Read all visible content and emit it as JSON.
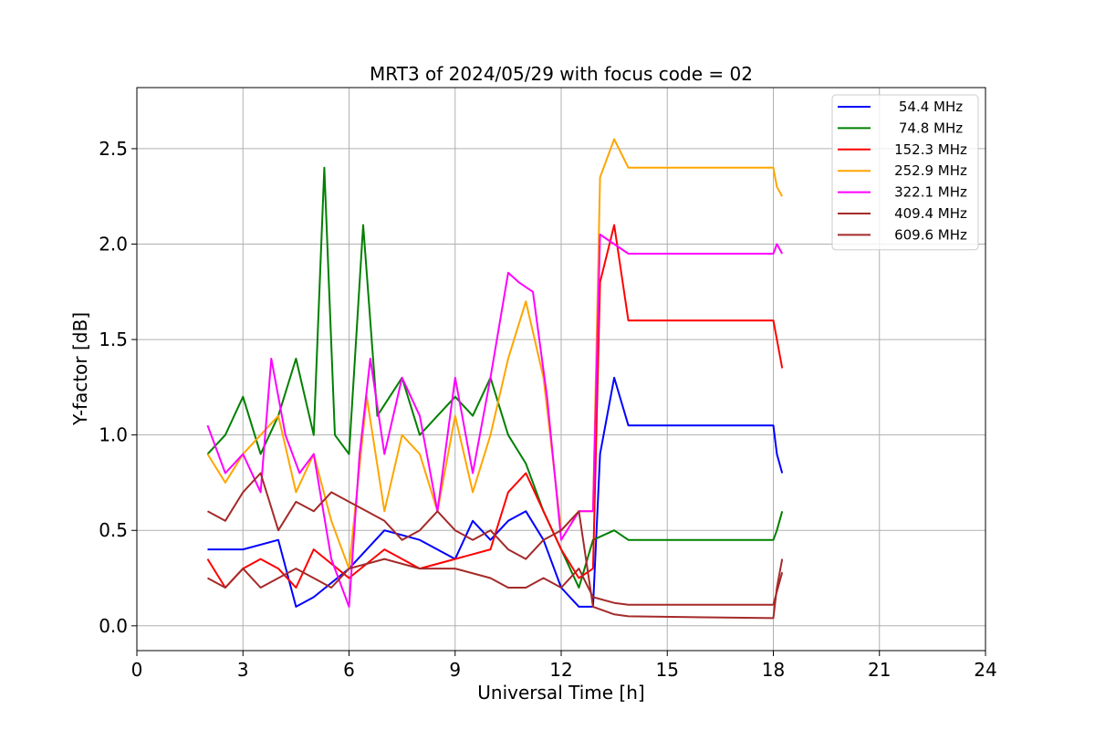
{
  "chart_data": {
    "type": "line",
    "title": "MRT3 of 2024/05/29 with focus code = 02",
    "xlabel": "Universal Time [h]",
    "ylabel": "Y-factor [dB]",
    "xlim": [
      0,
      24
    ],
    "ylim": [
      -0.13,
      2.82
    ],
    "xticks": [
      0,
      3,
      6,
      9,
      12,
      15,
      18,
      21,
      24
    ],
    "xtick_labels": [
      "0",
      "3",
      "6",
      "9",
      "12",
      "15",
      "18",
      "21",
      "24"
    ],
    "yticks": [
      0.0,
      0.5,
      1.0,
      1.5,
      2.0,
      2.5
    ],
    "ytick_labels": [
      "0.0",
      "0.5",
      "1.0",
      "1.5",
      "2.0",
      "2.5"
    ],
    "grid": true,
    "legend_position": "top-right",
    "series": [
      {
        "name": "54.4 MHz",
        "color": "#0000ff",
        "x": [
          2.0,
          3.0,
          4.0,
          4.5,
          5.0,
          6.0,
          7.0,
          8.0,
          9.0,
          9.5,
          10.0,
          10.5,
          11.0,
          11.5,
          12.0,
          12.5,
          12.9,
          13.1,
          13.5,
          13.9,
          18.0,
          18.1,
          18.25
        ],
        "y": [
          0.4,
          0.4,
          0.45,
          0.1,
          0.15,
          0.3,
          0.5,
          0.45,
          0.35,
          0.55,
          0.45,
          0.55,
          0.6,
          0.45,
          0.2,
          0.1,
          0.1,
          0.9,
          1.3,
          1.05,
          1.05,
          0.9,
          0.8
        ]
      },
      {
        "name": "74.8 MHz",
        "color": "#008000",
        "x": [
          2.0,
          2.5,
          3.0,
          3.5,
          4.0,
          4.5,
          5.0,
          5.3,
          5.6,
          6.0,
          6.4,
          6.8,
          7.5,
          8.0,
          8.5,
          9.0,
          9.5,
          10.0,
          10.5,
          11.0,
          11.5,
          12.0,
          12.5,
          12.9,
          13.5,
          13.9,
          18.0,
          18.1,
          18.25
        ],
        "y": [
          0.9,
          1.0,
          1.2,
          0.9,
          1.1,
          1.4,
          1.0,
          2.4,
          1.0,
          0.9,
          2.1,
          1.1,
          1.3,
          1.0,
          1.1,
          1.2,
          1.1,
          1.3,
          1.0,
          0.85,
          0.6,
          0.4,
          0.2,
          0.45,
          0.5,
          0.45,
          0.45,
          0.5,
          0.6
        ]
      },
      {
        "name": "152.3 MHz",
        "color": "#ff0000",
        "x": [
          2.0,
          2.5,
          3.0,
          3.5,
          4.0,
          4.5,
          5.0,
          6.0,
          7.0,
          8.0,
          9.0,
          10.0,
          10.5,
          11.0,
          11.5,
          12.0,
          12.5,
          12.9,
          13.1,
          13.5,
          13.9,
          18.0,
          18.1,
          18.25
        ],
        "y": [
          0.35,
          0.2,
          0.3,
          0.35,
          0.3,
          0.2,
          0.4,
          0.25,
          0.4,
          0.3,
          0.35,
          0.4,
          0.7,
          0.8,
          0.6,
          0.4,
          0.25,
          0.3,
          1.8,
          2.1,
          1.6,
          1.6,
          1.5,
          1.35
        ]
      },
      {
        "name": "252.9 MHz",
        "color": "#ffa500",
        "x": [
          2.0,
          2.5,
          3.0,
          3.5,
          4.0,
          4.5,
          5.0,
          5.5,
          6.0,
          6.5,
          7.0,
          7.5,
          8.0,
          8.5,
          9.0,
          9.5,
          10.0,
          10.5,
          11.0,
          11.5,
          12.0,
          12.5,
          12.9,
          13.1,
          13.5,
          13.9,
          18.0,
          18.1,
          18.25
        ],
        "y": [
          0.9,
          0.75,
          0.9,
          1.0,
          1.1,
          0.7,
          0.9,
          0.55,
          0.3,
          1.2,
          0.6,
          1.0,
          0.9,
          0.6,
          1.1,
          0.7,
          1.0,
          1.4,
          1.7,
          1.3,
          0.5,
          0.6,
          0.6,
          2.35,
          2.55,
          2.4,
          2.4,
          2.3,
          2.25
        ]
      },
      {
        "name": "322.1 MHz",
        "color": "#ff00ff",
        "x": [
          2.0,
          2.5,
          3.0,
          3.5,
          3.8,
          4.2,
          4.6,
          5.0,
          5.5,
          6.0,
          6.3,
          6.6,
          7.0,
          7.5,
          8.0,
          8.5,
          9.0,
          9.5,
          10.0,
          10.5,
          10.8,
          11.2,
          11.6,
          12.0,
          12.5,
          12.9,
          13.1,
          13.5,
          13.9,
          18.0,
          18.1,
          18.25
        ],
        "y": [
          1.05,
          0.8,
          0.9,
          0.7,
          1.4,
          1.0,
          0.8,
          0.9,
          0.35,
          0.1,
          0.9,
          1.4,
          0.9,
          1.3,
          1.1,
          0.6,
          1.3,
          0.8,
          1.3,
          1.85,
          1.8,
          1.75,
          1.2,
          0.45,
          0.6,
          0.6,
          2.05,
          2.0,
          1.95,
          1.95,
          2.0,
          1.95
        ]
      },
      {
        "name": "409.4 MHz",
        "color": "#a52a2a",
        "x": [
          2.0,
          2.5,
          3.0,
          3.5,
          4.0,
          4.5,
          5.0,
          5.5,
          6.0,
          7.0,
          8.0,
          9.0,
          10.0,
          10.5,
          11.0,
          11.5,
          12.0,
          12.5,
          12.9,
          13.5,
          13.9,
          18.0,
          18.1,
          18.25
        ],
        "y": [
          0.25,
          0.2,
          0.3,
          0.2,
          0.25,
          0.3,
          0.25,
          0.2,
          0.3,
          0.35,
          0.3,
          0.3,
          0.25,
          0.2,
          0.2,
          0.25,
          0.2,
          0.3,
          0.15,
          0.12,
          0.11,
          0.11,
          0.18,
          0.28
        ]
      },
      {
        "name": "609.6 MHz",
        "color": "#a52a2a",
        "x": [
          2.0,
          2.5,
          3.0,
          3.5,
          4.0,
          4.5,
          5.0,
          5.5,
          6.0,
          6.5,
          7.0,
          7.5,
          8.0,
          8.5,
          9.0,
          9.5,
          10.0,
          10.5,
          11.0,
          11.5,
          12.0,
          12.5,
          12.9,
          13.5,
          13.9,
          18.0,
          18.1,
          18.25
        ],
        "y": [
          0.6,
          0.55,
          0.7,
          0.8,
          0.5,
          0.65,
          0.6,
          0.7,
          0.65,
          0.6,
          0.55,
          0.45,
          0.5,
          0.6,
          0.5,
          0.45,
          0.5,
          0.4,
          0.35,
          0.45,
          0.5,
          0.6,
          0.1,
          0.06,
          0.05,
          0.04,
          0.2,
          0.35
        ]
      }
    ]
  }
}
